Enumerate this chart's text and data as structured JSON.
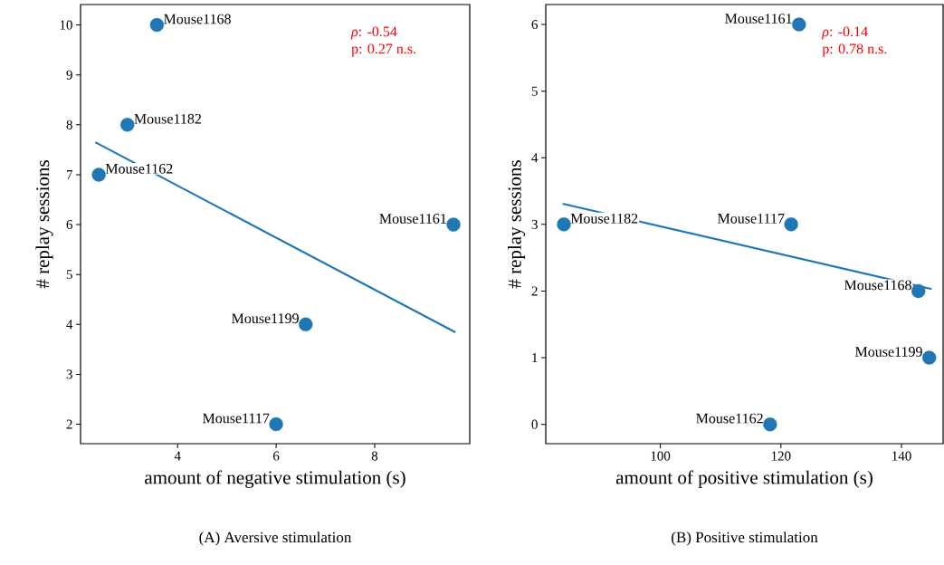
{
  "chart_data": [
    {
      "type": "scatter",
      "title": "(A) Aversive stimulation",
      "xlabel": "amount of negative stimulation (s)",
      "ylabel": "# replay sessions",
      "annotations": [
        "*ρ*: -0.54",
        "p: 0.27 n.s."
      ],
      "xlim": [
        2.03,
        9.93
      ],
      "ylim": [
        1.61,
        10.41
      ],
      "xticks": [
        4,
        6,
        8
      ],
      "yticks": [
        2,
        3,
        4,
        5,
        6,
        7,
        8,
        9,
        10
      ],
      "series": [
        {
          "type": "scatter",
          "color": "#1f77b4",
          "x": [
            3.58,
            2.98,
            2.4,
            9.6,
            6.6,
            6.0
          ],
          "values": [
            10,
            8,
            7,
            6,
            4,
            2
          ],
          "value_labels": [
            "Mouse1168",
            "Mouse1182",
            "Mouse1162",
            "Mouse1161",
            "Mouse1199",
            "Mouse1117"
          ]
        },
        {
          "type": "line",
          "color": "#1f77b4",
          "x": [
            2.33,
            9.64
          ],
          "values": [
            7.65,
            3.84
          ]
        }
      ]
    },
    {
      "type": "scatter",
      "title": "(B) Positive stimulation",
      "xlabel": "amount of positive stimulation (s)",
      "ylabel": "# replay sessions",
      "annotations": [
        "*ρ*: -0.14",
        "p: 0.78 n.s."
      ],
      "xlim": [
        81.0,
        146.9
      ],
      "ylim": [
        -0.29,
        6.3
      ],
      "xticks": [
        100,
        120,
        140
      ],
      "yticks": [
        0,
        1,
        2,
        3,
        4,
        5,
        6
      ],
      "series": [
        {
          "type": "scatter",
          "color": "#1f77b4",
          "x": [
            123.0,
            84.0,
            121.7,
            142.8,
            144.6,
            118.2
          ],
          "values": [
            6,
            3,
            3,
            2,
            1,
            0
          ],
          "value_labels": [
            "Mouse1161",
            "Mouse1182",
            "Mouse1117",
            "Mouse1168",
            "Mouse1199",
            "Mouse1162"
          ]
        },
        {
          "type": "line",
          "color": "#1f77b4",
          "x": [
            83.8,
            145.0
          ],
          "values": [
            3.31,
            2.03
          ]
        }
      ]
    }
  ]
}
